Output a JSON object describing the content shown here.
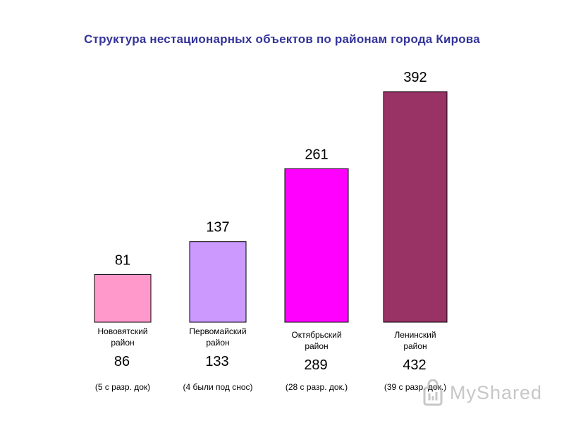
{
  "chart_data": {
    "type": "bar",
    "title": "Структура нестационарных объектов по районам города Кирова",
    "categories": [
      [
        "Нововятский",
        "район"
      ],
      [
        "Первомайский",
        "район"
      ],
      [
        "Октябрьский",
        "район"
      ],
      [
        "Ленинский",
        "район"
      ]
    ],
    "values": [
      81,
      137,
      261,
      392
    ],
    "secondary_values": [
      "86",
      "133",
      "289",
      "432"
    ],
    "notes": [
      "(5 с разр. док)",
      "(4 были под снос)",
      "(28  с разр. док.)",
      "(39  с разр. док.)"
    ],
    "colors": [
      "#FF99CC",
      "#CC99FF",
      "#FF00FF",
      "#993366"
    ],
    "ylim": [
      0,
      392
    ],
    "grid": false,
    "legend": "none"
  },
  "watermark": {
    "text": "MyShared",
    "icon": "shared-bag-icon"
  }
}
